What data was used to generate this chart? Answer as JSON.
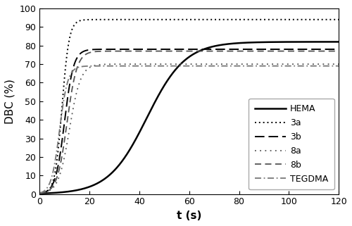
{
  "xlabel": "t (s)",
  "ylabel": "DBC (%)",
  "xlim": [
    0,
    120
  ],
  "ylim": [
    0,
    100
  ],
  "xticks": [
    0,
    20,
    40,
    60,
    80,
    100,
    120
  ],
  "yticks": [
    0,
    10,
    20,
    30,
    40,
    50,
    60,
    70,
    80,
    90,
    100
  ],
  "series": [
    {
      "name": "HEMA",
      "L": 82,
      "k": 0.13,
      "t0": 43,
      "color": "#000000",
      "lw": 1.8,
      "ls": "solid"
    },
    {
      "name": "3a",
      "L": 94,
      "k": 0.7,
      "t0": 9,
      "color": "#000000",
      "lw": 1.4,
      "ls": "3a"
    },
    {
      "name": "3b",
      "L": 78,
      "k": 0.55,
      "t0": 10,
      "color": "#000000",
      "lw": 1.4,
      "ls": "3b"
    },
    {
      "name": "8a",
      "L": 70,
      "k": 0.45,
      "t0": 12,
      "color": "#555555",
      "lw": 1.3,
      "ls": "8a"
    },
    {
      "name": "8b",
      "L": 77,
      "k": 0.5,
      "t0": 11,
      "color": "#555555",
      "lw": 1.3,
      "ls": "8b"
    },
    {
      "name": "TEGDMA",
      "L": 69,
      "k": 0.6,
      "t0": 8,
      "color": "#777777",
      "lw": 1.3,
      "ls": "tegdma"
    }
  ],
  "legend_fontsize": 9,
  "axis_label_fontsize": 11,
  "tick_fontsize": 9,
  "legend_loc": "lower right"
}
